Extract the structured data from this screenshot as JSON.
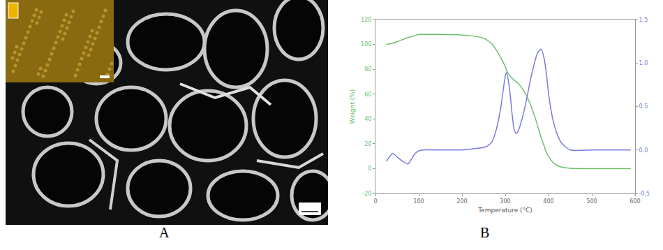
{
  "panel_labels": [
    "A",
    "B"
  ],
  "chart_data": {
    "type": "line",
    "x_label": "Temperature (°C)",
    "y_label": "Weight (%)",
    "x": [
      25,
      40,
      50,
      60,
      75,
      90,
      100,
      110,
      150,
      200,
      220,
      250,
      260,
      270,
      280,
      290,
      300,
      303,
      310,
      315,
      320,
      325,
      330,
      340,
      350,
      360,
      365,
      370,
      375,
      383,
      390,
      395,
      400,
      410,
      420,
      430,
      450,
      500,
      550,
      590
    ],
    "xlim": [
      0,
      600
    ],
    "xticks": [
      0,
      100,
      200,
      300,
      400,
      500,
      600
    ],
    "ylim": [
      -20,
      120
    ],
    "yticks": [
      -20,
      0,
      20,
      40,
      60,
      80,
      100,
      120
    ],
    "y2lim": [
      -0.5,
      1.5
    ],
    "y2ticks": [
      {
        "value": -0.5,
        "label": "-0.5"
      },
      {
        "value": 0,
        "label": "0.0"
      },
      {
        "value": 0.5,
        "label": "0.5"
      },
      {
        "value": 1,
        "label": "1.0"
      },
      {
        "value": 1.5,
        "label": "1.5"
      }
    ],
    "grid": false,
    "series": [
      {
        "color": "#6cbf6c",
        "values": [
          100,
          101,
          102,
          103.5,
          105.5,
          107,
          108,
          108,
          108,
          107.5,
          107,
          105,
          103,
          100,
          95,
          89,
          82,
          79,
          75,
          73,
          71.5,
          70,
          68.5,
          64,
          58,
          50,
          45,
          40,
          34,
          25,
          18,
          13,
          10,
          5,
          2.5,
          1.2,
          0.3,
          0,
          0,
          0
        ]
      },
      {
        "color": "#7a7ae0",
        "axis": "y2",
        "values": [
          -0.13,
          -0.04,
          -0.08,
          -0.12,
          -0.16,
          -0.05,
          -0.01,
          0,
          0,
          0,
          0.01,
          0.03,
          0.05,
          0.1,
          0.25,
          0.5,
          0.85,
          0.89,
          0.7,
          0.45,
          0.25,
          0.19,
          0.22,
          0.38,
          0.6,
          0.85,
          0.95,
          1.05,
          1.12,
          1.16,
          1.05,
          0.88,
          0.65,
          0.35,
          0.18,
          0.08,
          0,
          0,
          0,
          0
        ]
      }
    ]
  }
}
